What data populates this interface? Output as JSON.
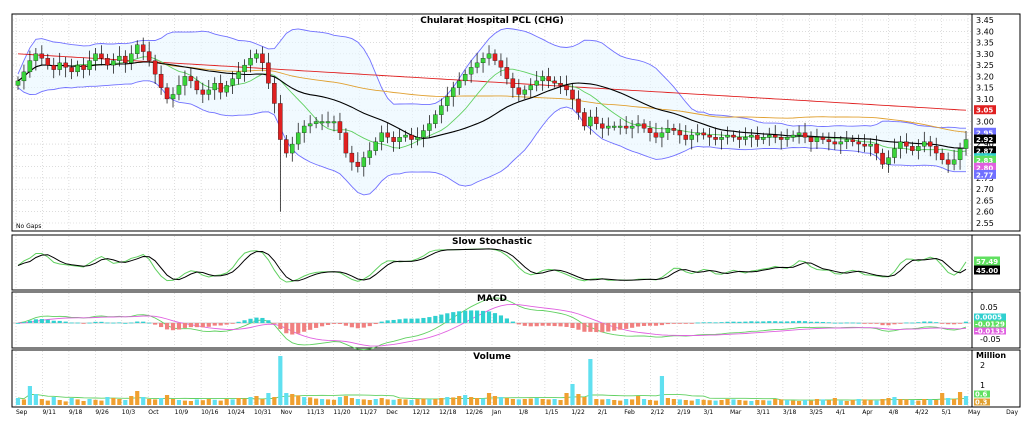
{
  "chart_data": {
    "type": "candlestick",
    "title": "Chularat Hospital PCL (CHG)",
    "note": "No Gaps",
    "x_period_label": "Day",
    "x_tick_labels": [
      "Sep",
      "9/11",
      "9/18",
      "9/26",
      "10/3",
      "Oct",
      "10/9",
      "10/16",
      "10/24",
      "10/31",
      "Nov",
      "11/13",
      "11/20",
      "11/27",
      "Dec",
      "12/12",
      "12/18",
      "12/26",
      "Jan",
      "1/8",
      "1/15",
      "1/22",
      "2/1",
      "Feb",
      "2/12",
      "2/19",
      "3/1",
      "Mar",
      "3/11",
      "3/18",
      "3/25",
      "4/1",
      "Apr",
      "4/8",
      "4/22",
      "5/1",
      "May"
    ],
    "price_axis": {
      "min": 2.55,
      "max": 3.45,
      "ticks": [
        3.45,
        3.4,
        3.35,
        3.3,
        3.25,
        3.2,
        3.15,
        3.1,
        3.05,
        3.0,
        2.95,
        2.9,
        2.85,
        2.8,
        2.75,
        2.7,
        2.65,
        2.6,
        2.55
      ]
    },
    "price_tags": [
      {
        "text": "3.05",
        "value": 3.05,
        "color": "#e02020"
      },
      {
        "text": "2.95",
        "value": 2.95,
        "color": "#7070ff"
      },
      {
        "text": "2.92",
        "value": 2.92,
        "color": "#000000"
      },
      {
        "text": "2.87",
        "value": 2.87,
        "color": "#000000"
      },
      {
        "text": "2.84",
        "value": 2.84,
        "color": "#30d0d0"
      },
      {
        "text": "2.83",
        "value": 2.83,
        "color": "#60e060"
      },
      {
        "text": "2.80",
        "value": 2.8,
        "color": "#e060e0"
      },
      {
        "text": "2.77",
        "value": 2.77,
        "color": "#7070ff"
      }
    ],
    "close": [
      3.18,
      3.22,
      3.27,
      3.3,
      3.28,
      3.25,
      3.23,
      3.26,
      3.24,
      3.22,
      3.25,
      3.23,
      3.27,
      3.3,
      3.28,
      3.25,
      3.27,
      3.29,
      3.26,
      3.3,
      3.34,
      3.31,
      3.27,
      3.21,
      3.15,
      3.1,
      3.12,
      3.16,
      3.2,
      3.18,
      3.14,
      3.12,
      3.14,
      3.17,
      3.13,
      3.16,
      3.19,
      3.22,
      3.25,
      3.28,
      3.3,
      3.26,
      3.17,
      3.08,
      2.92,
      2.86,
      2.9,
      2.95,
      2.98,
      2.99,
      3.0,
      3.0,
      3.0,
      3.0,
      2.95,
      2.86,
      2.82,
      2.8,
      2.84,
      2.87,
      2.91,
      2.95,
      2.93,
      2.91,
      2.93,
      2.94,
      2.92,
      2.93,
      2.96,
      2.99,
      3.03,
      3.07,
      3.11,
      3.15,
      3.18,
      3.21,
      3.24,
      3.26,
      3.28,
      3.3,
      3.27,
      3.24,
      3.19,
      3.15,
      3.12,
      3.14,
      3.16,
      3.18,
      3.2,
      3.18,
      3.17,
      3.16,
      3.14,
      3.1,
      3.04,
      2.98,
      3.02,
      2.99,
      2.97,
      2.98,
      2.98,
      2.98,
      2.97,
      2.98,
      2.99,
      2.97,
      2.95,
      2.93,
      2.95,
      2.97,
      2.96,
      2.94,
      2.92,
      2.94,
      2.95,
      2.94,
      2.93,
      2.92,
      2.93,
      2.94,
      2.93,
      2.92,
      2.93,
      2.94,
      2.92,
      2.93,
      2.94,
      2.93,
      2.92,
      2.93,
      2.94,
      2.95,
      2.93,
      2.91,
      2.93,
      2.92,
      2.91,
      2.9,
      2.91,
      2.92,
      2.91,
      2.9,
      2.89,
      2.9,
      2.86,
      2.81,
      2.84,
      2.88,
      2.91,
      2.89,
      2.87,
      2.89,
      2.91,
      2.89,
      2.86,
      2.83,
      2.81,
      2.83,
      2.88,
      2.92
    ],
    "bollinger": {
      "upper_color": "#7070ff",
      "lower_color": "#7070ff"
    },
    "moving_averages": [
      {
        "color": "#e02020"
      },
      {
        "color": "#e0a030"
      },
      {
        "color": "#60d060"
      },
      {
        "color": "#000000"
      }
    ],
    "stochastic": {
      "title": "Slow Stochastic",
      "tags": [
        {
          "text": "57.49",
          "color": "#60e060"
        },
        {
          "text": "45.00",
          "color": "#000000"
        }
      ]
    },
    "macd": {
      "title": "MACD",
      "ticks": [
        {
          "text": "0.05",
          "value": 0.05
        },
        {
          "text": "-0.05",
          "value": -0.05
        }
      ],
      "tags": [
        {
          "text": "0.0005",
          "color": "#30d0d0"
        },
        {
          "text": "-0.0129",
          "color": "#60e060"
        },
        {
          "text": "-0.0133",
          "color": "#e060e0"
        }
      ]
    },
    "volume": {
      "title": "Volume",
      "unit": "Million",
      "ticks": [
        {
          "text": "2",
          "value": 2
        },
        {
          "text": "1",
          "value": 1
        }
      ],
      "tags": [
        {
          "text": "0.6",
          "color": "#60e060"
        },
        {
          "text": "0.3",
          "color": "#e0a030"
        }
      ],
      "values": [
        0.35,
        0.28,
        0.95,
        0.55,
        0.3,
        0.22,
        0.4,
        0.25,
        0.18,
        0.35,
        0.28,
        0.2,
        0.3,
        0.26,
        0.22,
        0.4,
        0.35,
        0.3,
        0.25,
        0.45,
        0.7,
        0.4,
        0.3,
        0.28,
        0.35,
        0.5,
        0.3,
        0.25,
        0.22,
        0.2,
        0.28,
        0.24,
        0.3,
        0.26,
        0.22,
        0.3,
        0.28,
        0.35,
        0.32,
        0.4,
        0.45,
        0.3,
        0.6,
        0.4,
        2.45,
        0.6,
        0.55,
        0.48,
        0.4,
        0.38,
        0.32,
        0.3,
        0.28,
        0.26,
        0.4,
        0.45,
        0.35,
        0.3,
        0.28,
        0.25,
        0.3,
        0.35,
        0.28,
        0.26,
        0.3,
        0.28,
        0.25,
        0.3,
        0.32,
        0.28,
        0.3,
        0.35,
        0.4,
        0.38,
        0.45,
        0.5,
        0.4,
        0.35,
        0.32,
        0.6,
        0.45,
        0.4,
        0.35,
        0.3,
        0.28,
        0.3,
        0.32,
        0.35,
        0.3,
        0.28,
        0.3,
        0.25,
        0.6,
        1.05,
        0.55,
        0.4,
        2.3,
        0.3,
        0.28,
        0.3,
        0.25,
        0.22,
        0.3,
        0.28,
        0.45,
        0.3,
        0.25,
        0.22,
        1.45,
        0.35,
        0.3,
        0.28,
        0.25,
        0.22,
        0.3,
        0.26,
        0.24,
        0.22,
        0.25,
        0.3,
        0.28,
        0.25,
        0.22,
        0.2,
        0.25,
        0.24,
        0.22,
        0.3,
        0.28,
        0.25,
        0.22,
        0.2,
        0.25,
        0.22,
        0.3,
        0.28,
        0.25,
        0.35,
        0.22,
        0.2,
        0.25,
        0.3,
        0.28,
        0.25,
        0.22,
        0.3,
        0.35,
        0.4,
        0.3,
        0.28,
        0.25,
        0.22,
        0.3,
        0.28,
        0.25,
        0.6,
        0.35,
        0.3,
        0.65,
        0.45
      ]
    }
  }
}
